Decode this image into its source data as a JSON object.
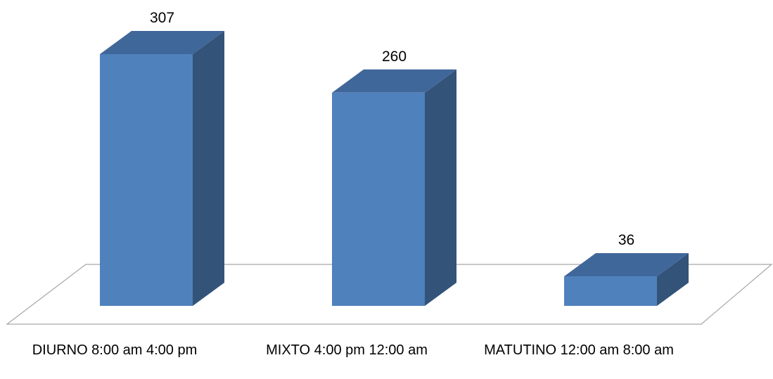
{
  "chart_data": {
    "type": "bar",
    "style": "3d-column",
    "categories": [
      "DIURNO 8:00 am 4:00 pm",
      "MIXTO 4:00 pm 12:00 am",
      "MATUTINO 12:00 am 8:00 am"
    ],
    "values": [
      307,
      260,
      36
    ],
    "data_labels": [
      "307",
      "260",
      "36"
    ],
    "title": "",
    "xlabel": "",
    "ylabel": "",
    "ylim": [
      0,
      310
    ],
    "grid": false,
    "legend": "none",
    "colors": {
      "front": "#4f81bd",
      "side": "#335379",
      "top": "#40679a",
      "floor_line": "#a6a6a6"
    }
  }
}
